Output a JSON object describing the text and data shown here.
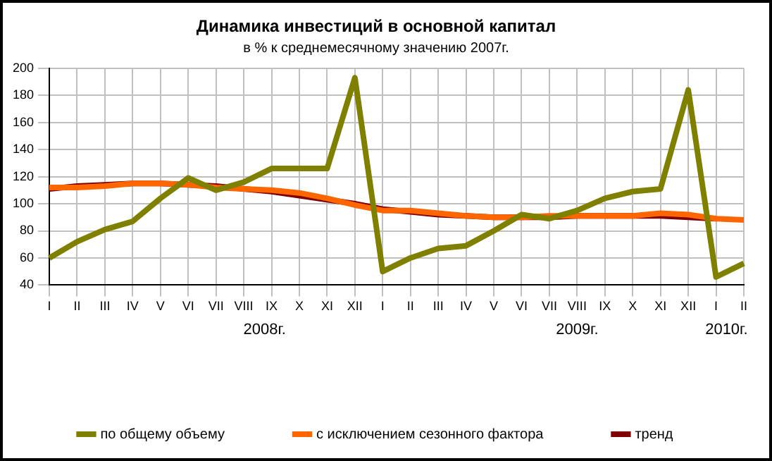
{
  "chart_data": {
    "type": "line",
    "title": "Динамика инвестиций в основной капитал",
    "subtitle": "в % к среднемесячному значению 2007г.",
    "categories": [
      "I",
      "II",
      "III",
      "IV",
      "V",
      "VI",
      "VII",
      "VIII",
      "IX",
      "X",
      "XI",
      "XII",
      "I",
      "II",
      "III",
      "IV",
      "V",
      "VI",
      "VII",
      "VIII",
      "IX",
      "X",
      "XI",
      "XII",
      "I",
      "II"
    ],
    "series": [
      {
        "name": "по общему объему",
        "color": "#808000",
        "values": [
          60,
          72,
          81,
          87,
          104,
          119,
          110,
          116,
          126,
          126,
          126,
          193,
          50,
          60,
          67,
          69,
          80,
          92,
          89,
          95,
          104,
          109,
          111,
          184,
          46,
          56
        ]
      },
      {
        "name": "с исключением сезонного фактора",
        "color": "#ff6600",
        "values": [
          112,
          112,
          113,
          115,
          115,
          114,
          112,
          111,
          110,
          108,
          104,
          99,
          95,
          95,
          93,
          91,
          90,
          90,
          91,
          91,
          91,
          91,
          93,
          92,
          89,
          88
        ]
      },
      {
        "name": "тренд",
        "color": "#800000",
        "values": [
          111,
          113,
          114,
          115,
          115,
          114,
          113,
          111,
          109,
          106,
          103,
          100,
          96,
          94,
          92,
          91,
          90,
          90,
          90,
          91,
          91,
          91,
          91,
          90,
          89,
          null
        ]
      }
    ],
    "ylim": [
      40,
      200
    ],
    "yticks": [
      40,
      60,
      80,
      100,
      120,
      140,
      160,
      180,
      200
    ],
    "grid": true,
    "legend": "bottom",
    "marker": "none",
    "line_style": "solid",
    "annotations": [
      "2008г.",
      "2009г.",
      "2010г."
    ]
  }
}
